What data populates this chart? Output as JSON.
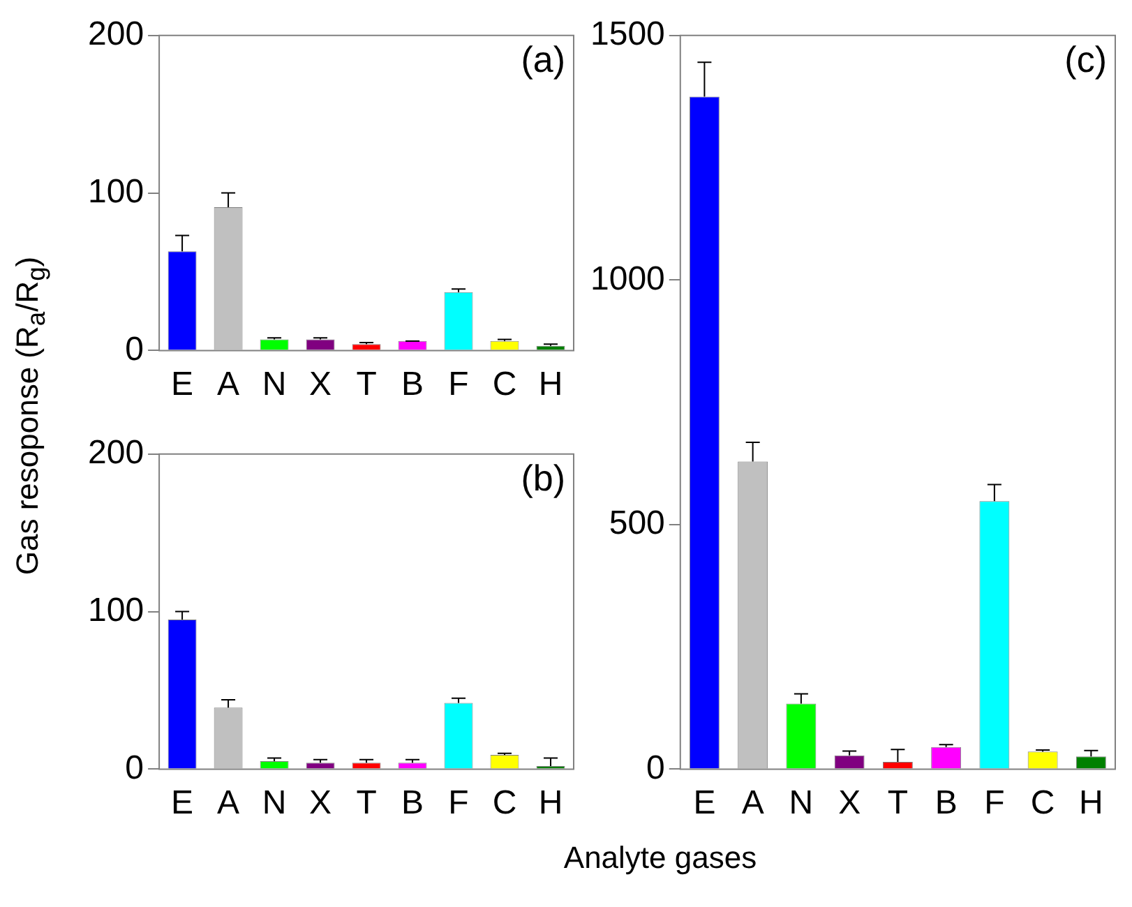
{
  "chart_data": [
    {
      "type": "bar",
      "categories": [
        "E",
        "A",
        "N",
        "X",
        "T",
        "B",
        "F",
        "C",
        "H"
      ],
      "colors": [
        "#0000ff",
        "#c0c0c0",
        "#00ff00",
        "#800080",
        "#ff0000",
        "#ff00ff",
        "#00ffff",
        "#ffff00",
        "#008000"
      ],
      "values": [
        63,
        91,
        7,
        7,
        4,
        6,
        37,
        6,
        3
      ],
      "errors": [
        [
          63,
          73
        ],
        [
          91,
          100
        ],
        [
          7,
          8
        ],
        [
          7,
          8
        ],
        [
          4,
          5
        ],
        [
          6,
          6
        ],
        [
          37,
          39
        ],
        [
          6,
          7
        ],
        [
          3,
          4
        ]
      ],
      "ylim": [
        0,
        200
      ],
      "yticks": [
        0,
        100,
        200
      ],
      "ylabel": "Gas resoponse (R$_{a}$/R$_{g}$)",
      "annotations": [
        "(a)"
      ]
    },
    {
      "type": "bar",
      "categories": [
        "E",
        "A",
        "N",
        "X",
        "T",
        "B",
        "F",
        "C",
        "H"
      ],
      "colors": [
        "#0000ff",
        "#c0c0c0",
        "#00ff00",
        "#800080",
        "#ff0000",
        "#ff00ff",
        "#00ffff",
        "#ffff00",
        "#008000"
      ],
      "values": [
        95,
        39,
        5,
        4,
        4,
        4,
        42,
        9,
        2
      ],
      "errors": [
        [
          95,
          100
        ],
        [
          39,
          44
        ],
        [
          5,
          7
        ],
        [
          4,
          6
        ],
        [
          4,
          6
        ],
        [
          4,
          6
        ],
        [
          42,
          45
        ],
        [
          9,
          10
        ],
        [
          2,
          7
        ]
      ],
      "ylim": [
        0,
        200
      ],
      "yticks": [
        0,
        100,
        200
      ],
      "annotations": [
        "(b)"
      ]
    },
    {
      "type": "bar",
      "categories": [
        "E",
        "A",
        "N",
        "X",
        "T",
        "B",
        "F",
        "C",
        "H"
      ],
      "colors": [
        "#0000ff",
        "#c0c0c0",
        "#00ff00",
        "#800080",
        "#ff0000",
        "#ff00ff",
        "#00ffff",
        "#ffff00",
        "#008000"
      ],
      "values": [
        1375,
        629,
        134,
        28,
        15,
        45,
        548,
        36,
        26
      ],
      "errors": [
        [
          1375,
          1445
        ],
        [
          629,
          668
        ],
        [
          134,
          154
        ],
        [
          28,
          37
        ],
        [
          15,
          40
        ],
        [
          45,
          50
        ],
        [
          548,
          582
        ],
        [
          36,
          39
        ],
        [
          26,
          38
        ]
      ],
      "ylim": [
        0,
        1500
      ],
      "yticks": [
        0,
        500,
        1000,
        1500
      ],
      "xlabel": "Analyte gases",
      "annotations": [
        "(c)"
      ]
    }
  ]
}
